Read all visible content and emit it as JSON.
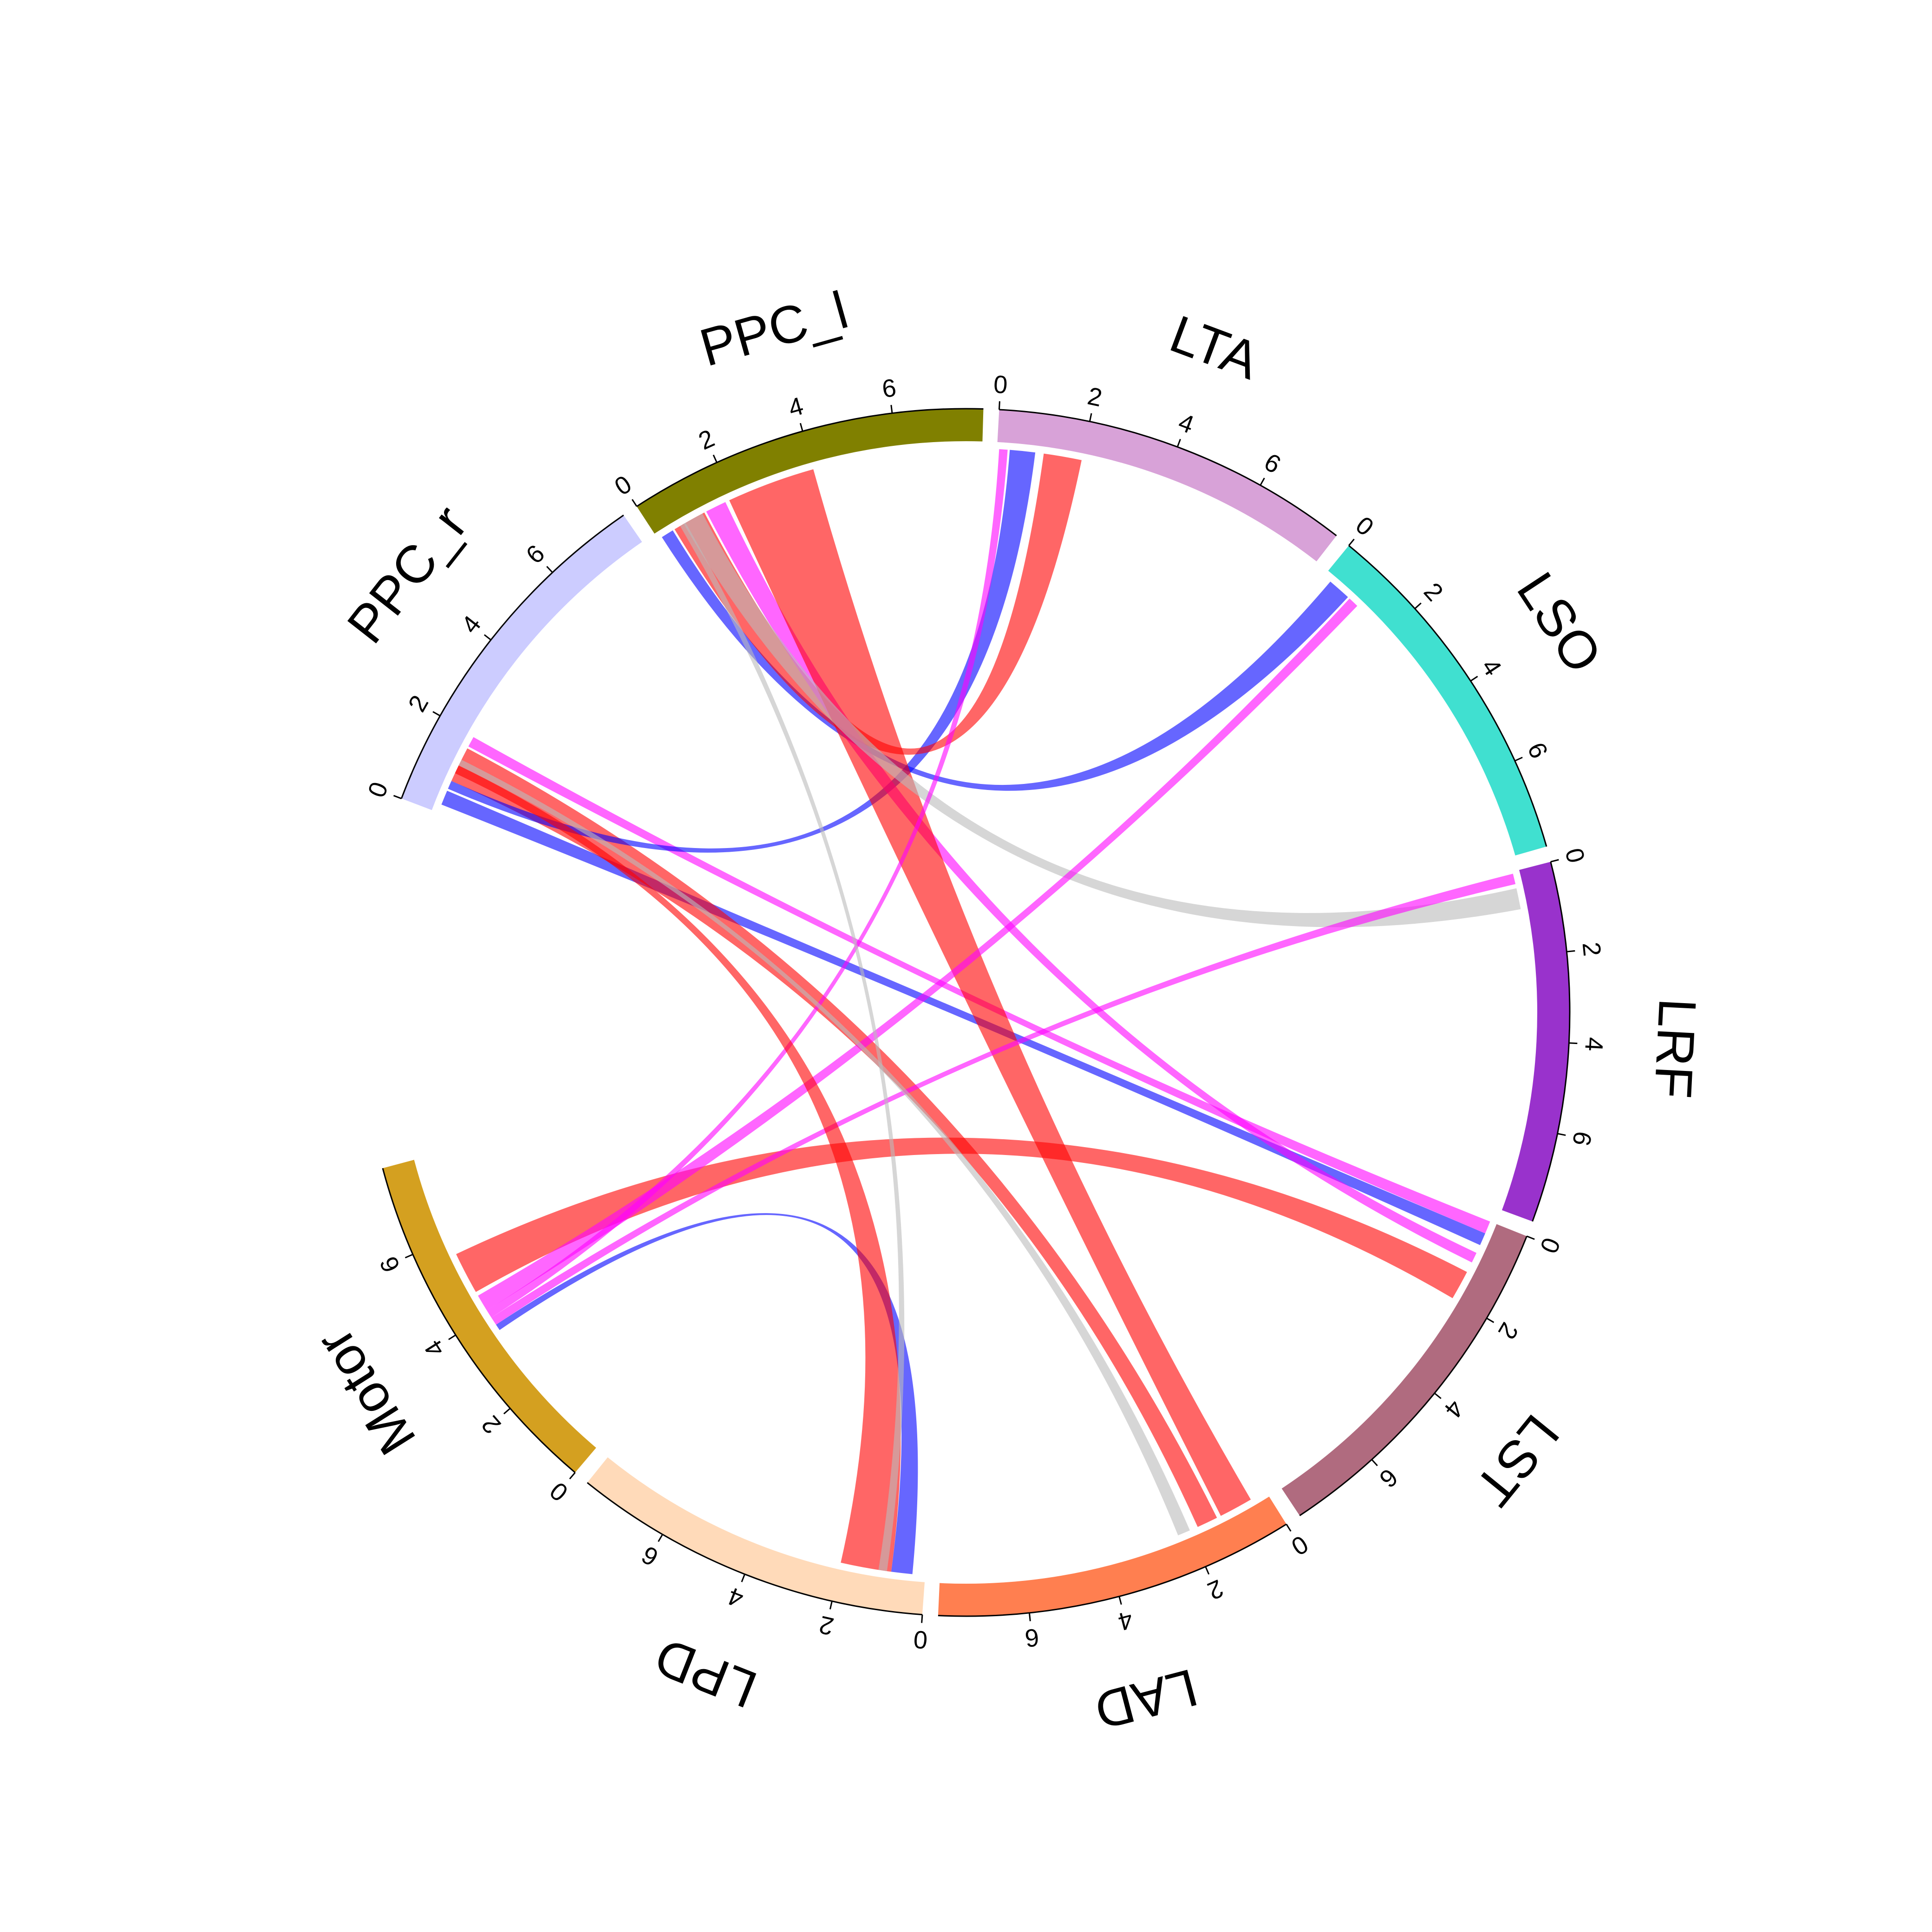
{
  "chart_data": {
    "type": "chord",
    "sectors": [
      {
        "name": "PPC_r",
        "color": "#CCCCFF",
        "max": 8,
        "ticks": [
          0,
          2,
          4,
          6
        ]
      },
      {
        "name": "PPC_l",
        "color": "#808000",
        "max": 8,
        "ticks": [
          0,
          2,
          4,
          6
        ]
      },
      {
        "name": "LTA",
        "color": "#D8A2D8",
        "max": 8,
        "ticks": [
          0,
          2,
          4,
          6
        ]
      },
      {
        "name": "LSO",
        "color": "#40E0D0",
        "max": 8,
        "ticks": [
          0,
          2,
          4,
          6
        ]
      },
      {
        "name": "LRF",
        "color": "#9932CC",
        "max": 8,
        "ticks": [
          0,
          2,
          4,
          6
        ]
      },
      {
        "name": "LST",
        "color": "#B06B7F",
        "max": 8,
        "ticks": [
          0,
          2,
          4,
          6
        ]
      },
      {
        "name": "LAD",
        "color": "#FF7F50",
        "max": 8,
        "ticks": [
          0,
          2,
          4,
          6
        ]
      },
      {
        "name": "LPD",
        "color": "#FFDAB9",
        "max": 8,
        "ticks": [
          0,
          2,
          4,
          6
        ]
      },
      {
        "name": "Motor",
        "color": "#D4A020",
        "max": 8,
        "ticks": [
          0,
          2,
          4,
          6
        ]
      }
    ],
    "links": [
      {
        "from": "PPC_r",
        "from_range": [
          0.2,
          0.55
        ],
        "to": "LST",
        "to_range": [
          -0.3,
          -0.6
        ],
        "color": "#0000FF"
      },
      {
        "from": "PPC_r",
        "from_range": [
          0.8,
          1.65
        ],
        "to": "LAD",
        "to_range": [
          1.3,
          1.8
        ],
        "color": "#FF0000"
      },
      {
        "from": "PPC_r",
        "from_range": [
          1.7,
          1.95
        ],
        "to": "LST",
        "to_range": [
          0.0,
          -0.3
        ],
        "color": "#FF00FF"
      },
      {
        "from": "PPC_r",
        "from_range": [
          0.6,
          0.8
        ],
        "to": "LTA",
        "to_range": [
          0.3,
          0.9
        ],
        "color": "#0000FF"
      },
      {
        "from": "PPC_l",
        "from_range": [
          0.1,
          0.4
        ],
        "to": "LSO",
        "to_range": [
          0.2,
          0.75
        ],
        "color": "#0000FF"
      },
      {
        "from": "PPC_l",
        "from_range": [
          0.45,
          1.25
        ],
        "to": "LTA",
        "to_range": [
          1.1,
          2.0
        ],
        "color": "#FF0000"
      },
      {
        "from": "PPC_l",
        "from_range": [
          1.3,
          1.8
        ],
        "to": "LST",
        "to_range": [
          0.8,
          1.05
        ],
        "color": "#FF00FF"
      },
      {
        "from": "PPC_l",
        "from_range": [
          1.9,
          4.0
        ],
        "to": "LAD",
        "to_range": [
          0.4,
          1.2
        ],
        "color": "#FF0000"
      },
      {
        "from": "PPC_l",
        "from_range": [
          0.7,
          1.2
        ],
        "to": "LRF",
        "to_range": [
          0.4,
          0.9
        ],
        "color": "#BBBBBB"
      },
      {
        "from": "Motor",
        "from_range": [
          4.6,
          5.6
        ],
        "to": "LST",
        "to_range": [
          1.3,
          2.0
        ],
        "color": "#FF0000"
      },
      {
        "from": "Motor",
        "from_range": [
          4.1,
          4.5
        ],
        "to": "LSO",
        "to_range": [
          0.8,
          1.05
        ],
        "color": "#FF00FF"
      },
      {
        "from": "Motor",
        "from_range": [
          3.9,
          4.1
        ],
        "to": "LTA",
        "to_range": [
          0.05,
          0.25
        ],
        "color": "#FF00FF"
      },
      {
        "from": "Motor",
        "from_range": [
          3.7,
          3.9
        ],
        "to": "LRF",
        "to_range": [
          0.05,
          0.3
        ],
        "color": "#FF00FF"
      },
      {
        "from": "Motor",
        "from_range": [
          3.55,
          3.7
        ],
        "to": "LPD",
        "to_range": [
          0.3,
          0.8
        ],
        "color": "#0000FF"
      },
      {
        "from": "LPD",
        "from_range": [
          0.8,
          2.0
        ],
        "to": "PPC_r",
        "to_range": [
          1.0,
          1.2
        ],
        "color": "#FF0000"
      },
      {
        "from": "LPD",
        "from_range": [
          0.9,
          1.1
        ],
        "to": "PPC_l",
        "to_range": [
          0.6,
          0.75
        ],
        "color": "#BBBBBB"
      },
      {
        "from": "LAD",
        "from_range": [
          2.0,
          2.3
        ],
        "to": "PPC_r",
        "to_range": [
          1.2,
          1.35
        ],
        "color": "#BBBBBB"
      }
    ]
  }
}
